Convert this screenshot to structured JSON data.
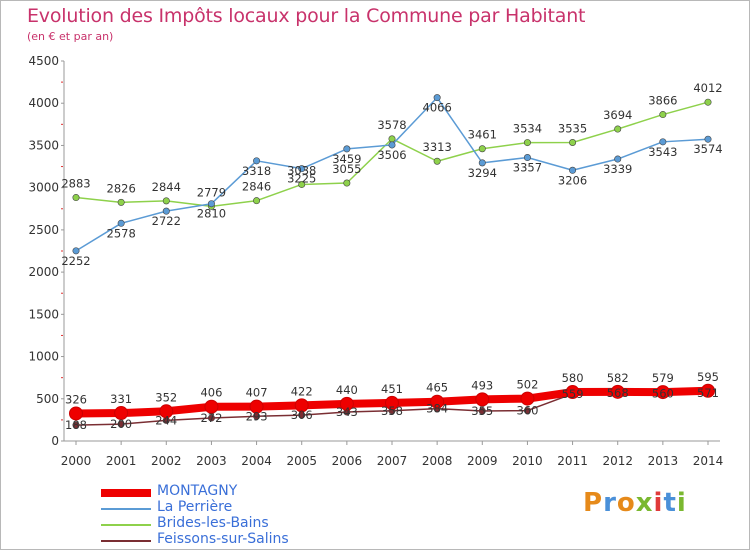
{
  "title": "Evolution des Impôts locaux pour la Commune par Habitant",
  "subtitle": "(en € et par an)",
  "logo": "Proxiti",
  "chart_data": {
    "type": "line",
    "title": "Evolution des Impôts locaux pour la Commune par Habitant",
    "subtitle": "(en € et par an)",
    "x": [
      2000,
      2001,
      2002,
      2003,
      2004,
      2005,
      2006,
      2007,
      2008,
      2009,
      2010,
      2011,
      2012,
      2013,
      2014
    ],
    "ylim": [
      0,
      4500
    ],
    "yticks": [
      0,
      500,
      1000,
      1500,
      2000,
      2500,
      3000,
      3500,
      4000,
      4500
    ],
    "grid": false,
    "legend": "bottom-left",
    "series": [
      {
        "name": "MONTAGNY",
        "color": "#ee0000",
        "values": [
          326,
          331,
          352,
          406,
          407,
          422,
          440,
          451,
          465,
          493,
          502,
          580,
          582,
          579,
          595
        ],
        "labels": [
          "326",
          "331",
          "352",
          "406",
          "407",
          "422",
          "440",
          "451",
          "465",
          "493",
          "502",
          "580",
          "582",
          "579",
          "595"
        ]
      },
      {
        "name": "La Perrière",
        "color": "#5b9bd5",
        "values": [
          2252,
          2578,
          2722,
          2810,
          3318,
          3225,
          3459,
          3506,
          4066,
          3294,
          3357,
          3206,
          3339,
          3543,
          3574
        ],
        "labels": [
          "2252",
          "2578",
          "2722",
          "2810",
          "3318",
          "3225",
          "3459",
          "3506",
          "4066",
          "3294",
          "3357",
          "3206",
          "3339",
          "3543",
          "3574"
        ]
      },
      {
        "name": "Brides-les-Bains",
        "color": "#8ed14b",
        "values": [
          2883,
          2826,
          2844,
          2779,
          2846,
          3038,
          3055,
          3578,
          3313,
          3461,
          3534,
          3535,
          3694,
          3866,
          4012
        ],
        "labels": [
          "2883",
          "2826",
          "2844",
          "2779",
          "2846",
          "3038",
          "3055",
          "3578",
          "3313",
          "3461",
          "3534",
          "3535",
          "3694",
          "3866",
          "4012"
        ]
      },
      {
        "name": "Feissons-sur-Salins",
        "color": "#7a2e33",
        "values": [
          188,
          200,
          244,
          272,
          293,
          306,
          343,
          358,
          384,
          355,
          360,
          559,
          568,
          560,
          571
        ],
        "labels": [
          "188",
          "200",
          "244",
          "272",
          "293",
          "306",
          "343",
          "358",
          "384",
          "355",
          "360",
          "559",
          "568",
          "560",
          "571"
        ]
      }
    ]
  }
}
